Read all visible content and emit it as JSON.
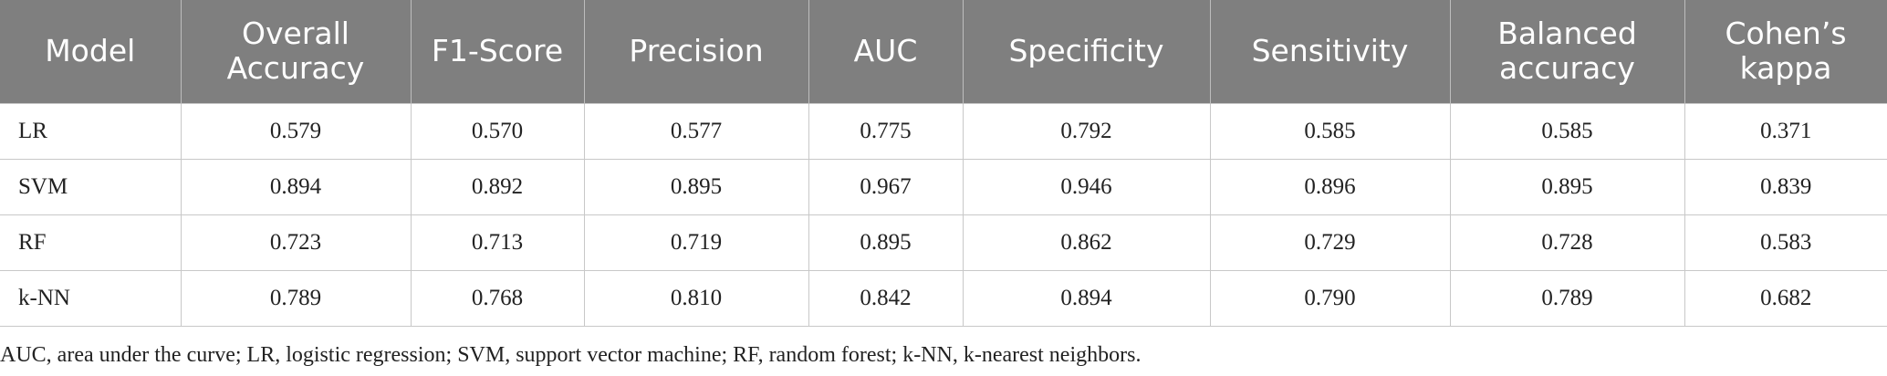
{
  "table": {
    "columns": [
      "Model",
      "Overall Accuracy",
      "F1-Score",
      "Precision",
      "AUC",
      "Specificity",
      "Sensitivity",
      "Balanced accuracy",
      "Cohen’s kappa"
    ],
    "rows": [
      [
        "LR",
        "0.579",
        "0.570",
        "0.577",
        "0.775",
        "0.792",
        "0.585",
        "0.585",
        "0.371"
      ],
      [
        "SVM",
        "0.894",
        "0.892",
        "0.895",
        "0.967",
        "0.946",
        "0.896",
        "0.895",
        "0.839"
      ],
      [
        "RF",
        "0.723",
        "0.713",
        "0.719",
        "0.895",
        "0.862",
        "0.729",
        "0.728",
        "0.583"
      ],
      [
        "k-NN",
        "0.789",
        "0.768",
        "0.810",
        "0.842",
        "0.894",
        "0.790",
        "0.789",
        "0.682"
      ]
    ]
  },
  "footnote": "AUC, area under the curve; LR, logistic regression; SVM, support vector machine; RF, random forest; k-NN, k-nearest neighbors."
}
